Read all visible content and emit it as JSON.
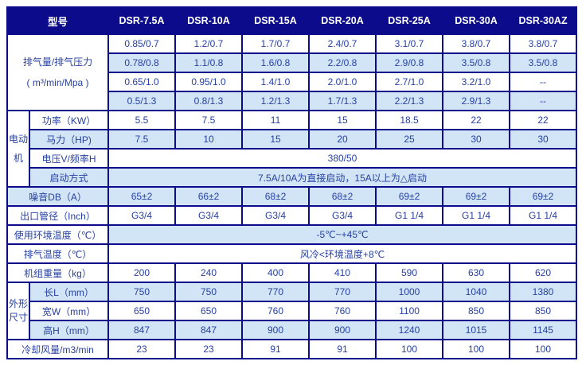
{
  "header": {
    "model_label": "型号",
    "models": [
      "DSR-7.5A",
      "DSR-10A",
      "DSR-15A",
      "DSR-20A",
      "DSR-25A",
      "DSR-30A",
      "DSR-30AZ"
    ]
  },
  "capacity": {
    "label_line1": "排气量/排气压力",
    "label_line2": "( m³/min/Mpa )",
    "rows": [
      [
        "0.85/0.7",
        "1.2/0.7",
        "1.7/0.7",
        "2.4/0.7",
        "3.1/0.7",
        "3.8/0.7",
        "3.8/0.7"
      ],
      [
        "0.78/0.8",
        "1.1/0.8",
        "1.6/0.8",
        "2.2/0.8",
        "2.9/0.8",
        "3.5/0.8",
        "3.5/0.8"
      ],
      [
        "0.65/1.0",
        "0.95/1.0",
        "1.4/1.0",
        "2.0/1.0",
        "2.7/1.0",
        "3.2/1.0",
        "--"
      ],
      [
        "0.5/1.3",
        "0.8/1.3",
        "1.2/1.3",
        "1.7/1.3",
        "2.2/1.3",
        "2.9/1.3",
        "--"
      ]
    ]
  },
  "motor": {
    "group_label": "电动机",
    "power_label": "功率（KW）",
    "power": [
      "5.5",
      "7.5",
      "11",
      "15",
      "18.5",
      "22",
      "22"
    ],
    "hp_label": "马力（HP)",
    "hp": [
      "7.5",
      "10",
      "15",
      "20",
      "25",
      "30",
      "30"
    ],
    "voltage_label": "电压V/频率H",
    "voltage_value": "380/50",
    "start_label": "启动方式",
    "start_value": "7.5A/10A为直接启动，15A以上为△启动"
  },
  "noise": {
    "label": "噪音DB（A）",
    "values": [
      "65±2",
      "66±2",
      "68±2",
      "68±2",
      "69±2",
      "69±2",
      "69±2"
    ]
  },
  "outlet": {
    "label": "出口管径（Inch）",
    "values": [
      "G3/4",
      "G3/4",
      "G3/4",
      "G3/4",
      "G1 1/4",
      "G1 1/4",
      "G1 1/4"
    ]
  },
  "ambient": {
    "label": "使用环境温度（℃）",
    "value": "-5℃~+45℃"
  },
  "exhaust": {
    "label": "排气温度（℃）",
    "value": "风冷<环境温度+8℃"
  },
  "weight": {
    "label": "机组重量（kg）",
    "values": [
      "200",
      "240",
      "400",
      "410",
      "590",
      "630",
      "620"
    ]
  },
  "dims": {
    "group_label": "外形尺寸",
    "length_label": "长L（mm）",
    "length": [
      "750",
      "750",
      "770",
      "770",
      "1000",
      "1040",
      "1380"
    ],
    "width_label": "宽W（mm）",
    "width": [
      "650",
      "650",
      "760",
      "760",
      "1100",
      "850",
      "850"
    ],
    "height_label": "高H（mm）",
    "height": [
      "847",
      "847",
      "900",
      "900",
      "1240",
      "1015",
      "1145"
    ]
  },
  "cooling": {
    "label": "冷却风量/m3/min",
    "values": [
      "23",
      "23",
      "91",
      "91",
      "100",
      "100",
      "100"
    ]
  },
  "colors": {
    "header_bg": "#0b0b8b",
    "border": "#0b0b8b",
    "stripe": "#d2e5f6",
    "cell_text": "#2741a3",
    "header_text": "#ffffff",
    "page_bg": "#ffffff"
  }
}
